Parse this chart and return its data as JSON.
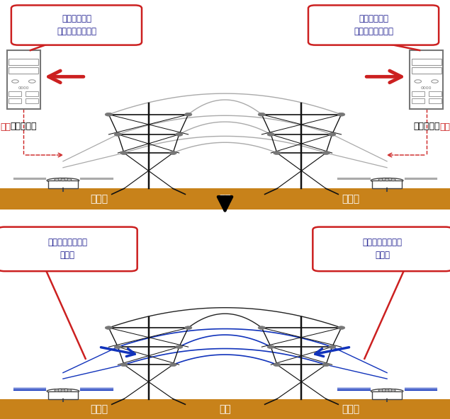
{
  "bg_color": "#ffffff",
  "ground_color": "#c8821a",
  "bubble_border": "#cc2020",
  "bubble_text_color": "#1a1a8e",
  "arrow_red": "#cc2020",
  "arrow_blue": "#1133bb",
  "cmd_color": "#cc2020",
  "wire_gray": "#aaaaaa",
  "wire_black": "#222222",
  "wire_blue": "#1133bb",
  "tower_color": "#111111",
  "insulator_color": "#888888",
  "top_bubble_left": "電気を安全に\n送れることを確認",
  "top_bubble_right": "電気を安全に\n送れることを確認",
  "bot_bubble_left": "「電気の通り道」\nを開通",
  "bot_bubble_right": "「電気の通り道」\nを開通",
  "label_relay_left": "保護リレー",
  "label_relay_right": "保護リレー",
  "label_cmd_left": "指令",
  "label_cmd_right": "指令",
  "label_ground_top": "大地",
  "label_ground_bot": "大地",
  "label_breaker": "遮断器",
  "fig_width": 6.35,
  "fig_height": 5.92
}
